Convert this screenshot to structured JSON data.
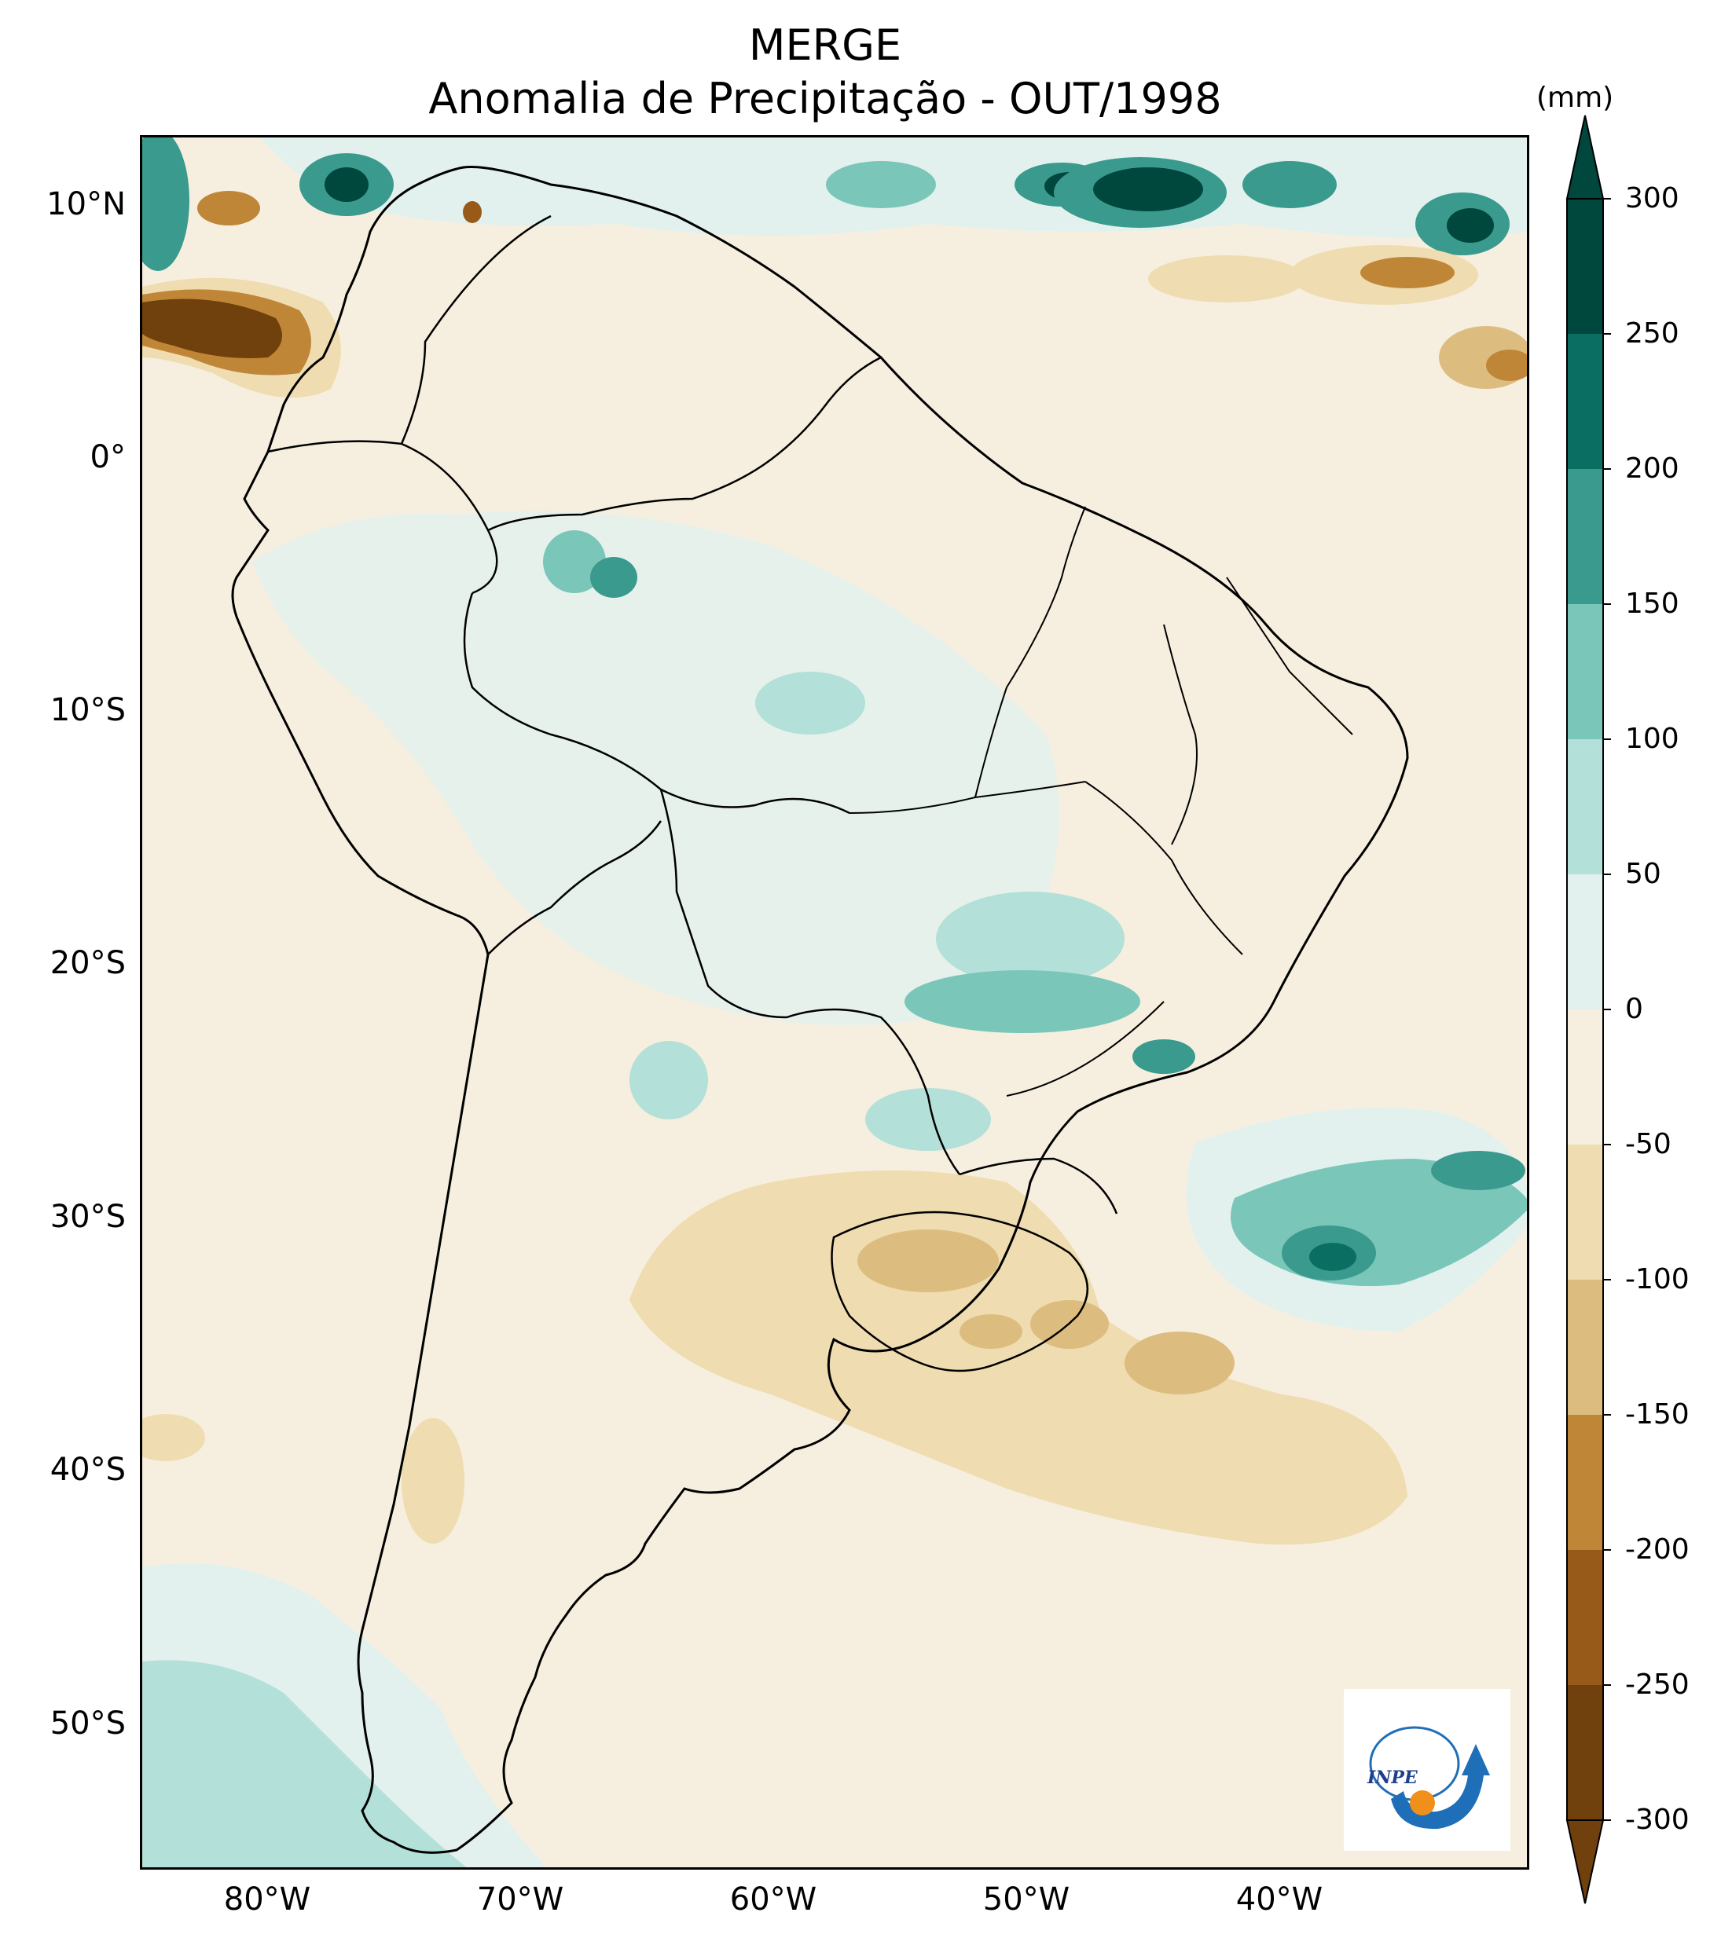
{
  "title": {
    "line1": "MERGE",
    "line2": "Anomalia de Precipitação - OUT/1998"
  },
  "map": {
    "type": "filled-contour",
    "region": "South America",
    "lon_range": [
      -85,
      -30
    ],
    "lat_range": [
      -56,
      12.5
    ],
    "lat_ticks": [
      "10°N",
      "0°",
      "10°S",
      "20°S",
      "30°S",
      "40°S",
      "50°S"
    ],
    "lon_ticks": [
      "80°W",
      "70°W",
      "60°W",
      "50°W",
      "40°W"
    ],
    "variable": "precipitation anomaly",
    "features": [
      "coastlines",
      "country borders",
      "Brazilian state borders"
    ]
  },
  "colorbar": {
    "unit": "(mm)",
    "ticks": [
      "300",
      "250",
      "200",
      "150",
      "100",
      "50",
      "0",
      "-50",
      "-100",
      "-150",
      "-200",
      "-250",
      "-300"
    ],
    "levels": [
      300,
      250,
      200,
      150,
      100,
      50,
      0,
      -50,
      -100,
      -150,
      -200,
      -250,
      -300
    ],
    "extend": "both",
    "colors": [
      "#00473d",
      "#0b6e63",
      "#3a9a8e",
      "#7ac6b9",
      "#b3e0d8",
      "#e3f1ee",
      "#f6efdf",
      "#efdcb0",
      "#dcbd7f",
      "#c08638",
      "#985a19",
      "#70400d"
    ]
  },
  "logo": {
    "text": "INPE",
    "colors": {
      "arrow": "#1f6fb8",
      "dot": "#f0901a"
    }
  }
}
